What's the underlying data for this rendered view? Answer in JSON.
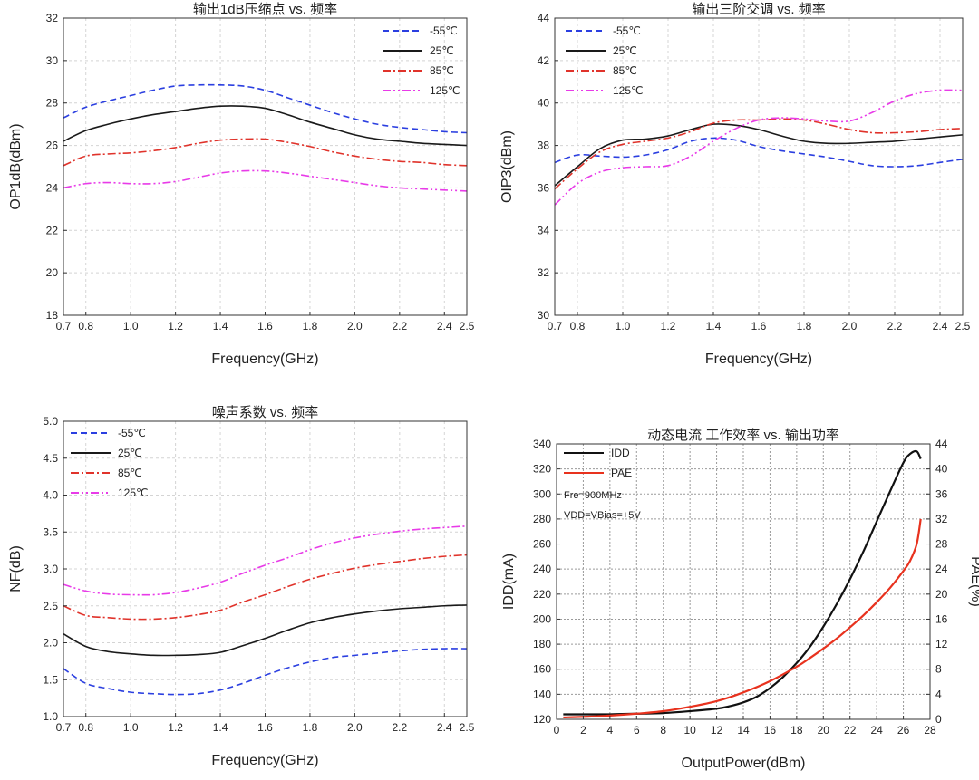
{
  "chart_data": [
    {
      "type": "line",
      "title": "输出1dB压缩点 vs. 频率",
      "xlabel": "Frequency(GHz)",
      "ylabel": "OP1dB(dBm)",
      "xlim": [
        0.7,
        2.5
      ],
      "ylim": [
        18,
        32
      ],
      "xticks": [
        "0.7",
        "0.8",
        "1.0",
        "1.2",
        "1.4",
        "1.6",
        "1.8",
        "2.0",
        "2.2",
        "2.4",
        "2.5"
      ],
      "yticks": [
        "18",
        "20",
        "22",
        "24",
        "26",
        "28",
        "30",
        "32"
      ],
      "grid": true,
      "legend": "top-right",
      "x": [
        0.7,
        0.8,
        0.9,
        1.0,
        1.1,
        1.2,
        1.3,
        1.4,
        1.5,
        1.6,
        1.7,
        1.8,
        1.9,
        2.0,
        2.1,
        2.2,
        2.3,
        2.4,
        2.5
      ],
      "series": [
        {
          "name": "-55℃",
          "color": "#2b3fe0",
          "dash": "dashed",
          "values": [
            27.3,
            27.8,
            28.1,
            28.35,
            28.6,
            28.8,
            28.85,
            28.85,
            28.8,
            28.6,
            28.25,
            27.9,
            27.55,
            27.25,
            27.0,
            26.85,
            26.75,
            26.65,
            26.6
          ]
        },
        {
          "name": "25℃",
          "color": "#1a1a1a",
          "dash": "solid",
          "values": [
            26.2,
            26.7,
            27.0,
            27.25,
            27.45,
            27.6,
            27.75,
            27.85,
            27.85,
            27.75,
            27.45,
            27.1,
            26.8,
            26.5,
            26.3,
            26.2,
            26.1,
            26.05,
            26.0
          ]
        },
        {
          "name": "85℃",
          "color": "#e0332b",
          "dash": "dashdot",
          "values": [
            25.05,
            25.5,
            25.6,
            25.65,
            25.75,
            25.9,
            26.1,
            26.25,
            26.3,
            26.3,
            26.15,
            25.95,
            25.7,
            25.5,
            25.35,
            25.25,
            25.2,
            25.1,
            25.05
          ]
        },
        {
          "name": "125℃",
          "color": "#e83be8",
          "dash": "dashdotdot",
          "values": [
            24.0,
            24.2,
            24.25,
            24.2,
            24.2,
            24.3,
            24.5,
            24.7,
            24.8,
            24.8,
            24.7,
            24.55,
            24.4,
            24.25,
            24.1,
            24.0,
            23.95,
            23.9,
            23.85
          ]
        }
      ]
    },
    {
      "type": "line",
      "title": "输出三阶交调 vs. 频率",
      "xlabel": "Frequency(GHz)",
      "ylabel": "OIP3(dBm)",
      "xlim": [
        0.7,
        2.5
      ],
      "ylim": [
        30,
        44
      ],
      "xticks": [
        "0.7",
        "0.8",
        "1.0",
        "1.2",
        "1.4",
        "1.6",
        "1.8",
        "2.0",
        "2.2",
        "2.4",
        "2.5"
      ],
      "yticks": [
        "30",
        "32",
        "34",
        "36",
        "38",
        "40",
        "42",
        "44"
      ],
      "grid": true,
      "legend": "top-left",
      "x": [
        0.7,
        0.8,
        0.9,
        1.0,
        1.1,
        1.2,
        1.3,
        1.4,
        1.5,
        1.6,
        1.7,
        1.8,
        1.9,
        2.0,
        2.1,
        2.2,
        2.3,
        2.4,
        2.5
      ],
      "series": [
        {
          "name": "-55℃",
          "color": "#2b3fe0",
          "dash": "dashed",
          "values": [
            37.2,
            37.55,
            37.5,
            37.45,
            37.55,
            37.8,
            38.2,
            38.35,
            38.25,
            37.95,
            37.75,
            37.6,
            37.45,
            37.25,
            37.05,
            37.0,
            37.05,
            37.2,
            37.35
          ]
        },
        {
          "name": "25℃",
          "color": "#1a1a1a",
          "dash": "solid",
          "values": [
            36.1,
            37.0,
            37.85,
            38.25,
            38.3,
            38.45,
            38.75,
            39.0,
            38.95,
            38.75,
            38.45,
            38.2,
            38.1,
            38.1,
            38.15,
            38.2,
            38.3,
            38.4,
            38.5
          ]
        },
        {
          "name": "85℃",
          "color": "#e0332b",
          "dash": "dashdot",
          "values": [
            35.95,
            36.9,
            37.7,
            38.05,
            38.2,
            38.35,
            38.65,
            39.05,
            39.2,
            39.2,
            39.25,
            39.2,
            39.0,
            38.75,
            38.6,
            38.6,
            38.65,
            38.75,
            38.8
          ]
        },
        {
          "name": "125℃",
          "color": "#e83be8",
          "dash": "dashdotdot",
          "values": [
            35.2,
            36.2,
            36.75,
            36.95,
            37.0,
            37.05,
            37.5,
            38.2,
            38.8,
            39.2,
            39.3,
            39.25,
            39.15,
            39.15,
            39.55,
            40.1,
            40.45,
            40.6,
            40.6
          ]
        }
      ]
    },
    {
      "type": "line",
      "title": "噪声系数 vs. 频率",
      "xlabel": "Frequency(GHz)",
      "ylabel": "NF(dB)",
      "xlim": [
        0.7,
        2.5
      ],
      "ylim": [
        1.0,
        5.0
      ],
      "xticks": [
        "0.7",
        "0.8",
        "1.0",
        "1.2",
        "1.4",
        "1.6",
        "1.8",
        "2.0",
        "2.2",
        "2.4",
        "2.5"
      ],
      "yticks": [
        "1.0",
        "1.5",
        "2.0",
        "2.5",
        "3.0",
        "3.5",
        "4.0",
        "4.5",
        "5.0"
      ],
      "grid": true,
      "legend": "top-left",
      "x": [
        0.7,
        0.8,
        0.9,
        1.0,
        1.1,
        1.2,
        1.3,
        1.4,
        1.5,
        1.6,
        1.7,
        1.8,
        1.9,
        2.0,
        2.1,
        2.2,
        2.3,
        2.4,
        2.5
      ],
      "series": [
        {
          "name": "-55℃",
          "color": "#2b3fe0",
          "dash": "dashed",
          "values": [
            1.65,
            1.45,
            1.38,
            1.33,
            1.31,
            1.3,
            1.31,
            1.36,
            1.45,
            1.56,
            1.66,
            1.74,
            1.8,
            1.83,
            1.86,
            1.89,
            1.91,
            1.92,
            1.92
          ]
        },
        {
          "name": "25℃",
          "color": "#1a1a1a",
          "dash": "solid",
          "values": [
            2.12,
            1.95,
            1.88,
            1.85,
            1.83,
            1.83,
            1.84,
            1.87,
            1.96,
            2.06,
            2.17,
            2.27,
            2.34,
            2.39,
            2.43,
            2.46,
            2.48,
            2.5,
            2.51
          ]
        },
        {
          "name": "85℃",
          "color": "#e0332b",
          "dash": "dashdot",
          "values": [
            2.5,
            2.37,
            2.34,
            2.32,
            2.32,
            2.34,
            2.38,
            2.44,
            2.55,
            2.65,
            2.76,
            2.86,
            2.94,
            3.01,
            3.06,
            3.1,
            3.14,
            3.17,
            3.19
          ]
        },
        {
          "name": "125℃",
          "color": "#e83be8",
          "dash": "dashdotdot",
          "values": [
            2.79,
            2.7,
            2.66,
            2.65,
            2.65,
            2.68,
            2.74,
            2.82,
            2.94,
            3.05,
            3.15,
            3.26,
            3.35,
            3.42,
            3.47,
            3.51,
            3.54,
            3.56,
            3.58
          ]
        }
      ]
    },
    {
      "type": "line",
      "title": "动态电流 工作效率 vs. 输出功率",
      "xlabel": "OutputPower(dBm)",
      "ylabel": "IDD(mA)",
      "y2label": "PAE(%)",
      "xlim": [
        0,
        28
      ],
      "ylim": [
        120,
        340
      ],
      "y2lim": [
        0,
        44
      ],
      "xticks": [
        "0",
        "2",
        "4",
        "6",
        "8",
        "10",
        "12",
        "14",
        "16",
        "18",
        "20",
        "22",
        "24",
        "26",
        "28"
      ],
      "yticks": [
        "120",
        "140",
        "160",
        "180",
        "200",
        "220",
        "240",
        "260",
        "280",
        "300",
        "320",
        "340"
      ],
      "y2ticks": [
        "0",
        "4",
        "8",
        "12",
        "16",
        "20",
        "24",
        "28",
        "32",
        "36",
        "40",
        "44"
      ],
      "grid": true,
      "legend": "top-left",
      "annotations": [
        "Fre=900MHz",
        "VDD=VBias=+5V"
      ],
      "series": [
        {
          "name": "IDD",
          "color": "#111111",
          "dash": "solid",
          "axis": "left",
          "x": [
            0.5,
            2,
            4,
            6,
            8,
            10,
            12,
            13,
            14,
            15,
            16,
            17,
            18,
            19,
            20,
            21,
            22,
            23,
            24,
            25,
            26,
            26.5,
            27,
            27.3
          ],
          "values": [
            124,
            124,
            124,
            124.5,
            125,
            126.5,
            128.5,
            130.5,
            133.5,
            138,
            145,
            154,
            165,
            178,
            194,
            212,
            232,
            254,
            278,
            302,
            325,
            332,
            334,
            328
          ]
        },
        {
          "name": "PAE",
          "color": "#e8321e",
          "dash": "solid",
          "axis": "right",
          "x": [
            0.5,
            2,
            4,
            6,
            8,
            10,
            12,
            14,
            16,
            18,
            19,
            20,
            21,
            22,
            23,
            24,
            25,
            26,
            26.5,
            27,
            27.3
          ],
          "values": [
            0.3,
            0.4,
            0.6,
            0.9,
            1.3,
            2.0,
            2.9,
            4.3,
            6.1,
            8.4,
            9.8,
            11.3,
            12.9,
            14.7,
            16.6,
            18.7,
            21.0,
            23.7,
            25.3,
            28.0,
            32.0
          ]
        }
      ]
    }
  ]
}
